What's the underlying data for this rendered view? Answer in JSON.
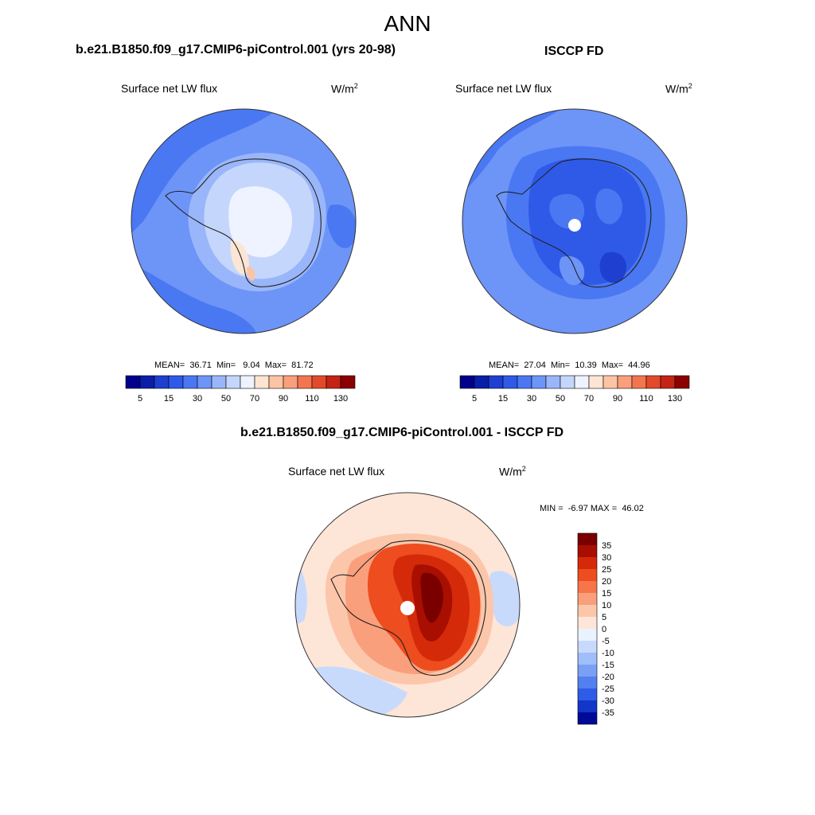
{
  "figure": {
    "title": "ANN",
    "variable": "Surface net LW flux",
    "units_base": "W/m",
    "units_exp": "2"
  },
  "panels": [
    {
      "title": "b.e21.B1850.f09_g17.CMIP6-piControl.001 (yrs 20-98)",
      "stats": "MEAN=  36.71  Min=   9.04  Max=  81.72"
    },
    {
      "title": "ISCCP FD",
      "stats": "MEAN=  27.04  Min=  10.39  Max=  44.96"
    },
    {
      "title": "b.e21.B1850.f09_g17.CMIP6-piControl.001 - ISCCP FD",
      "stats": "MIN =  -6.97 MAX =  46.02"
    }
  ],
  "chart_data": [
    {
      "type": "heatmap",
      "projection": "south-polar-stereographic",
      "title": "b.e21.B1850.f09_g17.CMIP6-piControl.001 (yrs 20-98)",
      "variable": "Surface net LW flux",
      "units": "W/m2",
      "mean": 36.71,
      "min": 9.04,
      "max": 81.72,
      "colorbar": {
        "levels": [
          5,
          10,
          15,
          20,
          30,
          40,
          50,
          60,
          70,
          80,
          90,
          100,
          110,
          120,
          130
        ],
        "tick_labels": [
          "5",
          "15",
          "30",
          "50",
          "70",
          "90",
          "110",
          "130"
        ],
        "colors": [
          "#00008b",
          "#0a1fa8",
          "#1e3fd0",
          "#2f5ae8",
          "#4a78f2",
          "#6d94f7",
          "#9ab6fa",
          "#c5d6fc",
          "#eef3ff",
          "#fde5d3",
          "#fcc4a4",
          "#f99f7b",
          "#f27550",
          "#e24a2c",
          "#c42415",
          "#8b0000"
        ]
      }
    },
    {
      "type": "heatmap",
      "projection": "south-polar-stereographic",
      "title": "ISCCP FD",
      "variable": "Surface net LW flux",
      "units": "W/m2",
      "mean": 27.04,
      "min": 10.39,
      "max": 44.96,
      "colorbar": {
        "levels": [
          5,
          10,
          15,
          20,
          30,
          40,
          50,
          60,
          70,
          80,
          90,
          100,
          110,
          120,
          130
        ],
        "tick_labels": [
          "5",
          "15",
          "30",
          "50",
          "70",
          "90",
          "110",
          "130"
        ],
        "colors": [
          "#00008b",
          "#0a1fa8",
          "#1e3fd0",
          "#2f5ae8",
          "#4a78f2",
          "#6d94f7",
          "#9ab6fa",
          "#c5d6fc",
          "#eef3ff",
          "#fde5d3",
          "#fcc4a4",
          "#f99f7b",
          "#f27550",
          "#e24a2c",
          "#c42415",
          "#8b0000"
        ]
      }
    },
    {
      "type": "heatmap",
      "projection": "south-polar-stereographic",
      "title": "b.e21.B1850.f09_g17.CMIP6-piControl.001 - ISCCP FD",
      "variable": "Surface net LW flux",
      "units": "W/m2",
      "min": -6.97,
      "max": 46.02,
      "colorbar": {
        "orientation": "vertical",
        "levels": [
          35,
          30,
          25,
          20,
          15,
          10,
          5,
          0,
          -5,
          -10,
          -15,
          -20,
          -25,
          -30,
          -35
        ],
        "tick_labels": [
          "35",
          "30",
          "25",
          "20",
          "15",
          "10",
          "5",
          "0",
          "-5",
          "-10",
          "-15",
          "-20",
          "-25",
          "-30",
          "-35"
        ],
        "colors": [
          "#7a0000",
          "#a80f00",
          "#d42a0a",
          "#ed4d1f",
          "#f6754a",
          "#fa9f7b",
          "#fcc6aa",
          "#fde6d8",
          "#eaf2ff",
          "#c8dafc",
          "#a0befa",
          "#7aa0f6",
          "#5280f0",
          "#2f5ce6",
          "#1436c8",
          "#000a96"
        ]
      }
    }
  ]
}
